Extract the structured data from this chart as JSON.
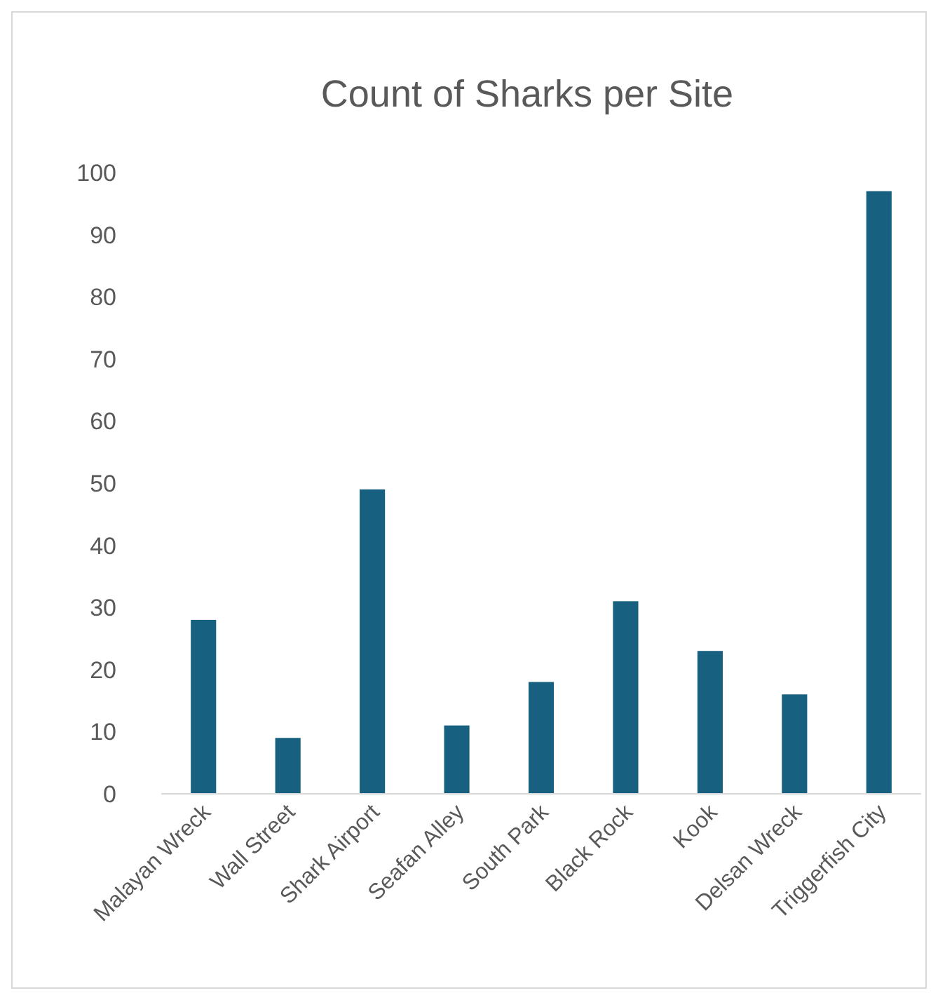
{
  "chart_data": {
    "type": "bar",
    "title": "Count of Sharks per Site",
    "categories": [
      "Malayan Wreck",
      "Wall Street",
      "Shark Airport",
      "Seafan Alley",
      "South Park",
      "Black Rock",
      "Kook",
      "Delsan Wreck",
      "Triggerfish City"
    ],
    "values": [
      28,
      9,
      49,
      11,
      18,
      31,
      23,
      16,
      97
    ],
    "color": "#17607f",
    "ylim": [
      0,
      100
    ],
    "yticks": [
      0,
      10,
      20,
      30,
      40,
      50,
      60,
      70,
      80,
      90,
      100
    ],
    "grid": false
  }
}
